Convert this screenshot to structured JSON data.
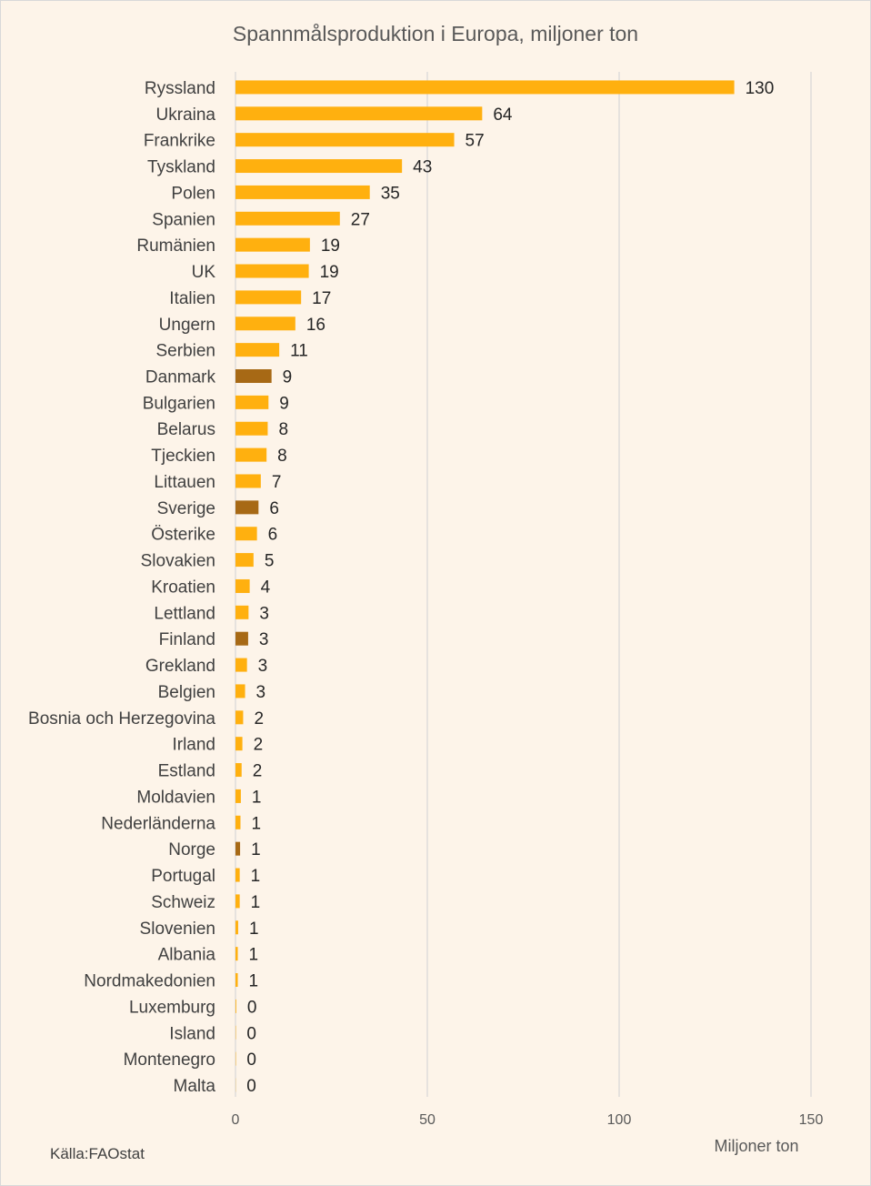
{
  "chart_data": {
    "type": "bar",
    "orientation": "horizontal",
    "title": "Spannmålsproduktion  i Europa, miljoner ton",
    "categories": [
      "Ryssland",
      "Ukraina",
      "Frankrike",
      "Tyskland",
      "Polen",
      "Spanien",
      "Rumänien",
      "UK",
      "Italien",
      "Ungern",
      "Serbien",
      "Danmark",
      "Bulgarien",
      "Belarus",
      "Tjeckien",
      "Littauen",
      "Sverige",
      "Österike",
      "Slovakien",
      "Kroatien",
      "Lettland",
      "Finland",
      "Grekland",
      "Belgien",
      "Bosnia och Herzegovina",
      "Irland",
      "Estland",
      "Moldavien",
      "Nederländerna",
      "Norge",
      "Portugal",
      "Schweiz",
      "Slovenien",
      "Albania",
      "Nordmakedonien",
      "Luxemburg",
      "Island",
      "Montenegro",
      "Malta"
    ],
    "values": [
      130,
      64.3,
      57,
      43.4,
      35,
      27.2,
      19.4,
      19.1,
      17.1,
      15.6,
      11.4,
      9.4,
      8.6,
      8.4,
      8.1,
      6.6,
      6,
      5.6,
      4.7,
      3.7,
      3.4,
      3.3,
      3,
      2.5,
      2,
      1.8,
      1.6,
      1.4,
      1.3,
      1.2,
      1.1,
      1.1,
      0.7,
      0.6,
      0.6,
      0.2,
      0.1,
      0.1,
      0.05
    ],
    "data_labels": [
      "130",
      "64",
      "57",
      "43",
      "35",
      "27",
      "19",
      "19",
      "17",
      "16",
      "11",
      "9",
      "9",
      "8",
      "8",
      "7",
      "6",
      "6",
      "5",
      "4",
      "3",
      "3",
      "3",
      "3",
      "2",
      "2",
      "2",
      "1",
      "1",
      "1",
      "1",
      "1",
      "1",
      "1",
      "1",
      "0",
      "0",
      "0",
      "0"
    ],
    "highlighted": [
      "Danmark",
      "Sverige",
      "Finland",
      "Norge"
    ],
    "xlim": [
      0,
      150
    ],
    "xticks": [
      0,
      50,
      100,
      150
    ],
    "xlabel": "Miljoner ton",
    "ylabel": "",
    "grid": true,
    "colors": {
      "bar": "#ffb00f",
      "highlight": "#a76915",
      "grid": "#d9d9d9"
    }
  },
  "source": "Källa:FAOstat"
}
